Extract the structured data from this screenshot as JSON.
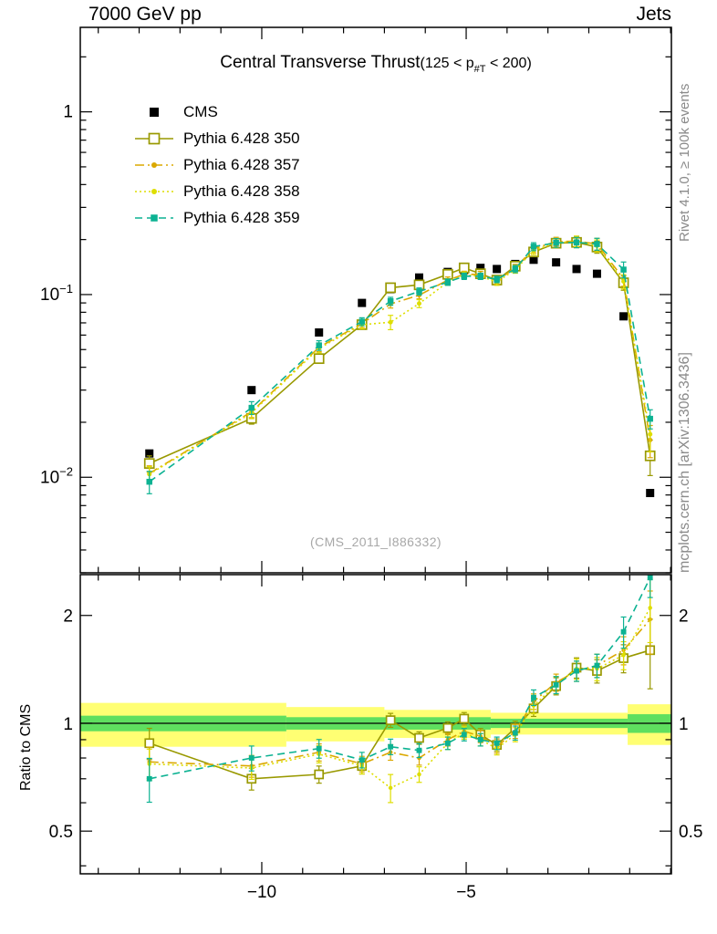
{
  "header": {
    "left": "7000 GeV pp",
    "right": "Jets"
  },
  "title": {
    "main": "Central Transverse Thrust",
    "paren_open": "(125 < p",
    "sub": "#T",
    "paren_close": " < 200)"
  },
  "watermark": "(CMS_2011_I886332)",
  "right_labels": {
    "top": "Rivet 4.1.0, ≥ 100k events",
    "bottom": "mcplots.cern.ch [arXiv:1306.3436]"
  },
  "ratio": {
    "ylabel": "Ratio to CMS"
  },
  "chart_data": {
    "type": "line",
    "title": "Central Transverse Thrust (125 < p#T < 200)",
    "x_axis": "ln-scale observable bins (ticks at -10 and -5)",
    "y_axis_main": "normalized rate (log scale)",
    "y_axis_ratio": "Ratio to CMS (log scale)",
    "legend_position": "top-left",
    "axes": {
      "x": {
        "min": -14.44,
        "max": 0.02,
        "minor_step": 1,
        "major": [
          -10,
          -5
        ],
        "labels": [
          {
            "v": -10,
            "text": "−10"
          },
          {
            "v": -5,
            "text": "−5"
          }
        ]
      },
      "y_main": {
        "min": 0.003,
        "max": 2.9,
        "scale": "log",
        "labels": [
          {
            "v": 1,
            "text": "1",
            "exp": null
          },
          {
            "v": 0.1,
            "text": "10",
            "exp": "−1"
          },
          {
            "v": 0.01,
            "text": "10",
            "exp": "−2"
          }
        ]
      },
      "y_ratio": {
        "min": 0.38,
        "max": 2.6,
        "scale": "log",
        "labeled": [
          0.5,
          1,
          2
        ],
        "labels": [
          {
            "v": 0.5,
            "text": "0.5"
          },
          {
            "v": 1,
            "text": "1"
          },
          {
            "v": 2,
            "text": "2"
          }
        ]
      }
    },
    "x": [
      -12.75,
      -10.25,
      -8.6,
      -7.55,
      -6.85,
      -6.15,
      -5.45,
      -5.05,
      -4.65,
      -4.25,
      -3.8,
      -3.35,
      -2.8,
      -2.3,
      -1.8,
      -1.15,
      -0.5
    ],
    "series": [
      {
        "name": "CMS",
        "color": "#000000",
        "marker": "square-filled",
        "size": 9,
        "line": "none",
        "err_frac": 0.03,
        "values": [
          0.0135,
          0.03,
          0.062,
          0.09,
          0.107,
          0.124,
          0.133,
          0.136,
          0.14,
          0.138,
          0.147,
          0.155,
          0.15,
          0.138,
          0.13,
          0.076,
          0.0082
        ],
        "ratio_reference": true
      },
      {
        "name": "Pythia 6.428 350",
        "color": "#999900",
        "marker": "square-open",
        "size": 10,
        "line": "solid",
        "values": [
          0.0119,
          0.021,
          0.0446,
          0.0684,
          0.109,
          0.113,
          0.129,
          0.14,
          0.13,
          0.12,
          0.143,
          0.171,
          0.191,
          0.193,
          0.182,
          0.116,
          0.0131
        ],
        "ratio": [
          0.88,
          0.7,
          0.72,
          0.76,
          1.02,
          0.91,
          0.97,
          1.03,
          0.93,
          0.87,
          0.97,
          1.1,
          1.27,
          1.43,
          1.4,
          1.52,
          1.6
        ],
        "err_frac": [
          0.1,
          0.07,
          0.055,
          0.05,
          0.045,
          0.04,
          0.04,
          0.04,
          0.04,
          0.04,
          0.045,
          0.05,
          0.055,
          0.065,
          0.075,
          0.09,
          0.22
        ]
      },
      {
        "name": "Pythia 6.428 357",
        "color": "#dba800",
        "marker": "circle-filled",
        "size": 5,
        "line": "dashdot",
        "values": [
          0.0105,
          0.0228,
          0.0515,
          0.0693,
          0.0888,
          0.0992,
          0.12,
          0.129,
          0.129,
          0.119,
          0.14,
          0.178,
          0.195,
          0.196,
          0.189,
          0.122,
          0.016
        ],
        "ratio": [
          0.78,
          0.76,
          0.83,
          0.77,
          0.83,
          0.8,
          0.9,
          0.95,
          0.92,
          0.86,
          0.95,
          1.15,
          1.3,
          1.4,
          1.45,
          1.6,
          1.95
        ],
        "err_frac": [
          0.1,
          0.07,
          0.055,
          0.05,
          0.05,
          0.045,
          0.04,
          0.04,
          0.04,
          0.04,
          0.045,
          0.05,
          0.055,
          0.065,
          0.075,
          0.09,
          0.2
        ]
      },
      {
        "name": "Pythia 6.428 358",
        "color": "#dede00",
        "marker": "circle-filled",
        "size": 5,
        "line": "dot",
        "values": [
          0.0104,
          0.0225,
          0.0508,
          0.0684,
          0.0706,
          0.0893,
          0.117,
          0.128,
          0.126,
          0.117,
          0.137,
          0.174,
          0.192,
          0.196,
          0.185,
          0.118,
          0.0172
        ],
        "ratio": [
          0.77,
          0.75,
          0.82,
          0.76,
          0.66,
          0.72,
          0.88,
          0.94,
          0.9,
          0.85,
          0.93,
          1.12,
          1.28,
          1.42,
          1.42,
          1.55,
          2.1
        ],
        "err_frac": [
          0.1,
          0.07,
          0.055,
          0.05,
          0.09,
          0.05,
          0.04,
          0.04,
          0.04,
          0.04,
          0.045,
          0.05,
          0.055,
          0.065,
          0.075,
          0.09,
          0.2
        ]
      },
      {
        "name": "Pythia 6.428 359",
        "color": "#0cb292",
        "marker": "square-filled",
        "size": 6.5,
        "line": "dash",
        "values": [
          0.00945,
          0.024,
          0.0527,
          0.0711,
          0.092,
          0.104,
          0.117,
          0.126,
          0.126,
          0.121,
          0.138,
          0.183,
          0.192,
          0.193,
          0.189,
          0.137,
          0.0209
        ],
        "ratio": [
          0.7,
          0.8,
          0.85,
          0.79,
          0.86,
          0.84,
          0.88,
          0.93,
          0.9,
          0.88,
          0.94,
          1.18,
          1.28,
          1.4,
          1.45,
          1.8,
          2.55
        ],
        "err_frac": [
          0.14,
          0.08,
          0.06,
          0.05,
          0.05,
          0.045,
          0.04,
          0.04,
          0.04,
          0.04,
          0.045,
          0.05,
          0.055,
          0.065,
          0.075,
          0.1,
          0.12
        ]
      }
    ],
    "bands": {
      "yellow": {
        "color": "#ffff73",
        "segments": [
          [
            -14.44,
            -9.4,
            0.86,
            1.14
          ],
          [
            -9.4,
            -7.0,
            0.89,
            1.11
          ],
          [
            -7.0,
            -4.4,
            0.91,
            1.09
          ],
          [
            -4.4,
            -1.05,
            0.93,
            1.07
          ],
          [
            -1.05,
            0.02,
            0.87,
            1.13
          ]
        ]
      },
      "green": {
        "color": "#5fdf5f",
        "segments": [
          [
            -14.44,
            -9.4,
            0.95,
            1.05
          ],
          [
            -9.4,
            -4.4,
            0.96,
            1.04
          ],
          [
            -4.4,
            -1.05,
            0.97,
            1.03
          ],
          [
            -1.05,
            0.02,
            0.94,
            1.06
          ]
        ]
      }
    }
  }
}
